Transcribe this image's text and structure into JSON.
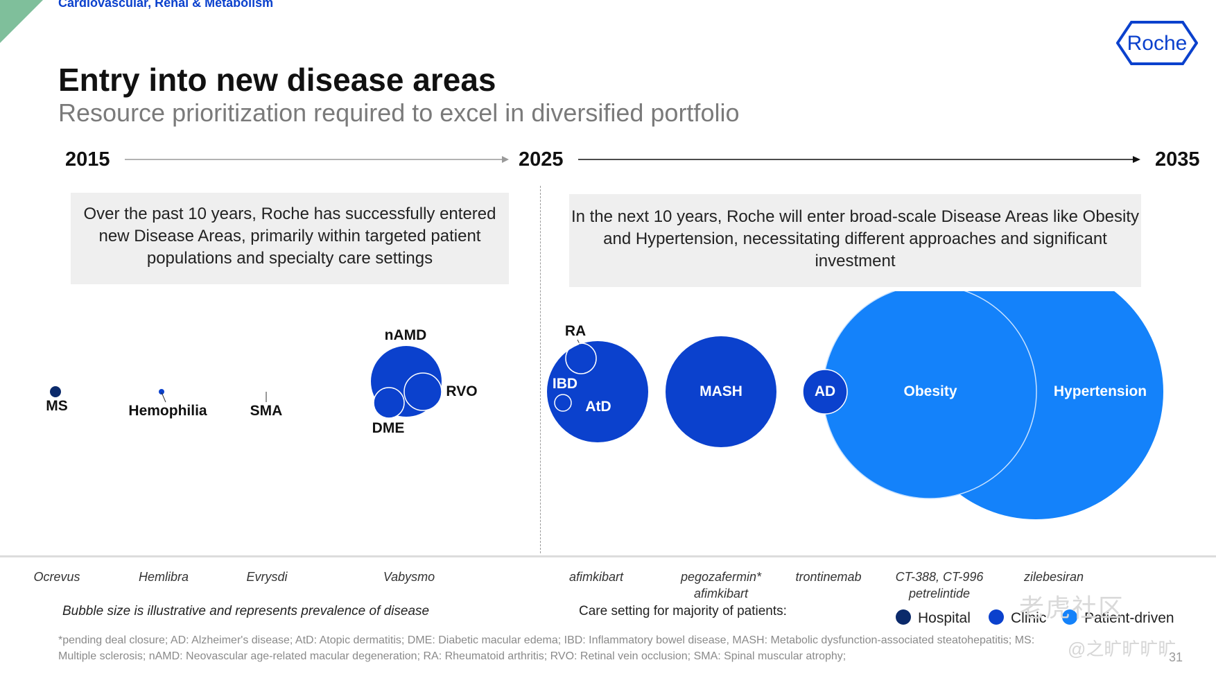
{
  "header": {
    "section_label": "Cardiovascular, Renal & Metabolism",
    "logo_text": "Roche",
    "title": "Entry into new disease areas",
    "subtitle": "Resource prioritization required to excel in diversified portfolio"
  },
  "timeline": {
    "years": [
      "2015",
      "2025",
      "2035"
    ]
  },
  "boxes": {
    "past": "Over the past 10 years, Roche has successfully entered new Disease Areas, primarily within targeted patient populations and specialty care settings",
    "future": "In the next 10 years, Roche will enter broad-scale Disease Areas like Obesity and Hypertension, necessitating different approaches and significant investment"
  },
  "bubbles": {
    "labels": {
      "ms": "MS",
      "hemophilia": "Hemophilia",
      "sma": "SMA",
      "namd": "nAMD",
      "rvo": "RVO",
      "dme": "DME",
      "ra": "RA",
      "ibd": "IBD",
      "atd": "AtD",
      "mash": "MASH",
      "ad": "AD",
      "obesity": "Obesity",
      "hypertension": "Hypertension"
    }
  },
  "drugs": {
    "ms": "Ocrevus",
    "hemophilia": "Hemlibra",
    "sma": "Evrysdi",
    "vabysmo": "Vabysmo",
    "afimkibart": "afimkibart",
    "mash_line1": "pegozafermin*",
    "mash_line2": "afimkibart",
    "ad": "trontinemab",
    "obesity_line1": "CT-388, CT-996",
    "obesity_line2": "petrelintide",
    "hypertension": "zilebesiran"
  },
  "notes": {
    "bubble_size": "Bubble size is illustrative and represents prevalence of disease",
    "care_setting": "Care setting for majority of patients:"
  },
  "legend": [
    {
      "label": "Hospital",
      "color": "#0b2a6b"
    },
    {
      "label": "Clinic",
      "color": "#0b41cd"
    },
    {
      "label": "Patient-driven",
      "color": "#1482fa"
    }
  ],
  "footnote": {
    "line1": "*pending deal closure; AD: Alzheimer's disease; AtD: Atopic dermatitis; DME: Diabetic macular edema; IBD: Inflammatory bowel disease, MASH: Metabolic dysfunction-associated steatohepatitis; MS:",
    "line2": "Multiple sclerosis; nAMD: Neovascular age-related macular degeneration; RA: Rheumatoid arthritis; RVO: Retinal vein occlusion; SMA: Spinal muscular atrophy;"
  },
  "watermark": {
    "main": "老虎社区",
    "handle": "@之旷旷旷旷"
  },
  "page_number": "31",
  "colors": {
    "hospital": "#0b2a6b",
    "clinic": "#0b41cd",
    "patient_driven": "#1482fa",
    "accent_green": "#7fbf9b"
  }
}
